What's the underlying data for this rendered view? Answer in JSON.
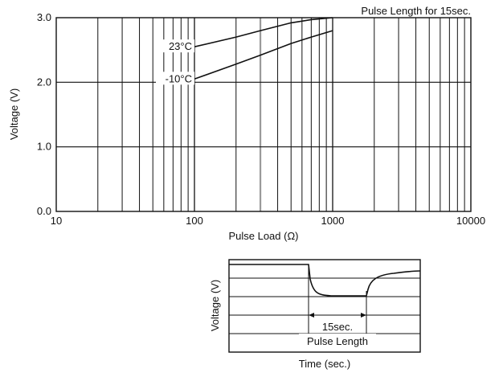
{
  "chart_data": [
    {
      "type": "line",
      "title": "Pulse Length for 15sec.",
      "xlabel": "Pulse Load (Ω)",
      "ylabel": "Voltage (V)",
      "xscale": "log",
      "xlim": [
        10,
        10000
      ],
      "ylim": [
        0.0,
        3.0
      ],
      "x_ticks": [
        "10",
        "100",
        "1000",
        "10000"
      ],
      "y_ticks": [
        "0.0",
        "1.0",
        "2.0",
        "3.0"
      ],
      "grid": true,
      "series": [
        {
          "name": "23°C",
          "x": [
            100,
            200,
            300,
            500,
            700,
            1000
          ],
          "y": [
            2.55,
            2.7,
            2.8,
            2.92,
            2.97,
            3.0
          ]
        },
        {
          "name": "-10°C",
          "x": [
            100,
            200,
            300,
            500,
            700,
            1000
          ],
          "y": [
            2.05,
            2.28,
            2.42,
            2.6,
            2.7,
            2.8
          ]
        }
      ]
    },
    {
      "type": "line",
      "xlabel": "Time (sec.)",
      "ylabel": "Voltage (V)",
      "annotations": {
        "duration": "15sec.",
        "pulse": "Pulse Length"
      }
    }
  ]
}
